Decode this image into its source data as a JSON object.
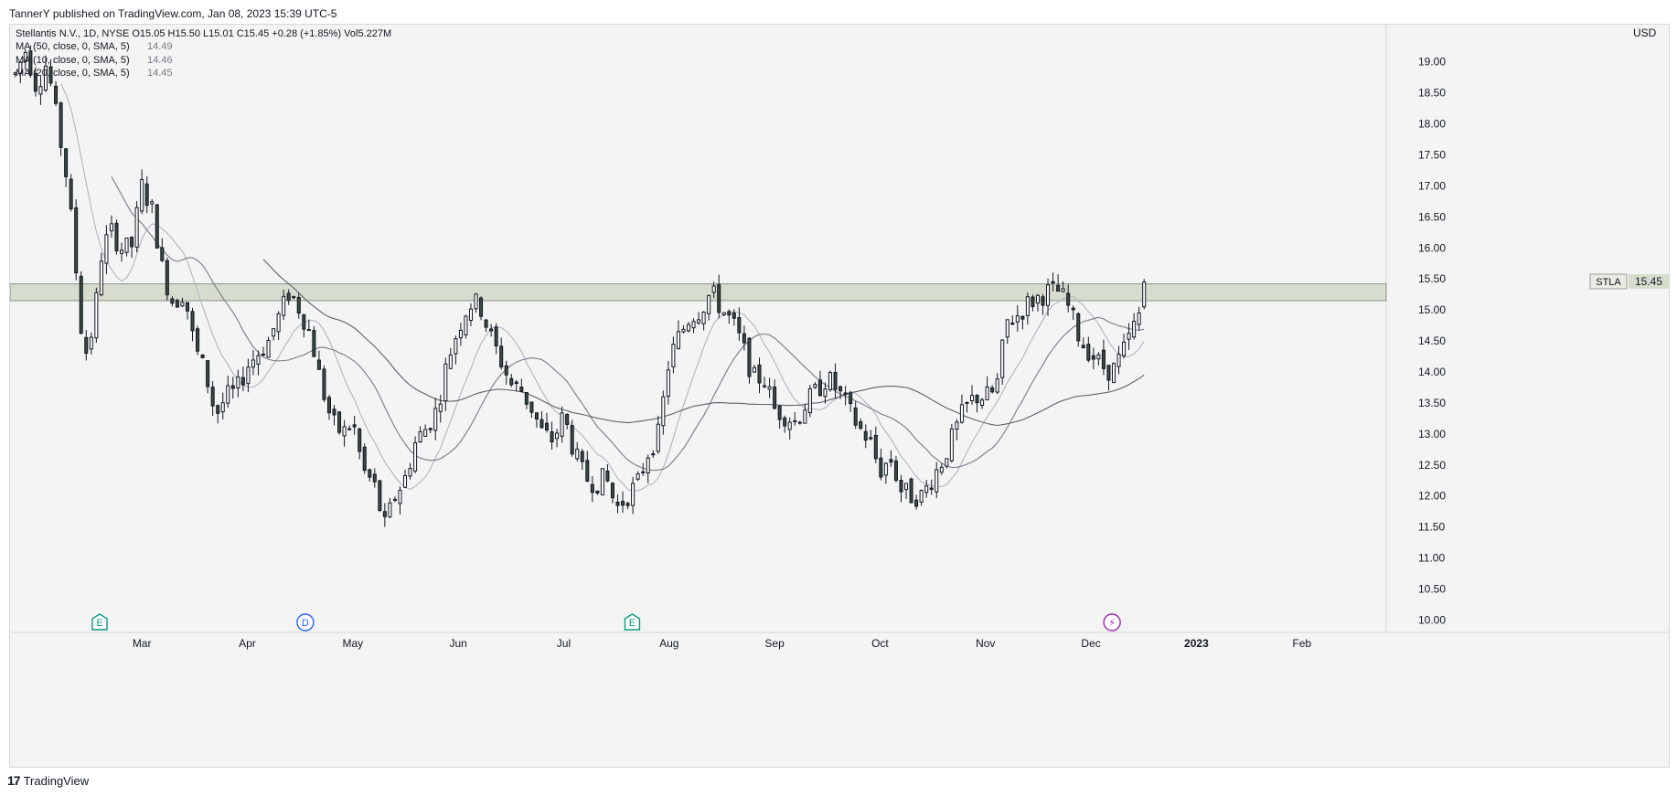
{
  "header": {
    "published_by": "TannerY published on TradingView.com, Jan 08, 2023 15:39 UTC-5"
  },
  "legend": {
    "symbol_line": "Stellantis N.V., 1D, NYSE  O15.05  H15.50  L15.01  C15.45  +0.28 (+1.85%)  Vol5.227M",
    "ma_lines": [
      {
        "label": "MA (50, close, 0, SMA, 5)",
        "value": "14.49"
      },
      {
        "label": "MA (10, close, 0, SMA, 5)",
        "value": "14.46"
      },
      {
        "label": "MA (20, close, 0, SMA, 5)",
        "value": "14.45"
      }
    ]
  },
  "footer": {
    "brand": "TradingView",
    "logo_glyph": "17"
  },
  "price_tag": {
    "symbol": "STLA",
    "price": "15.45"
  },
  "events": [
    {
      "glyph": "E",
      "month_pos": 1.6,
      "color": "#089981"
    },
    {
      "glyph": "D",
      "month_pos": 3.55,
      "color": "#2962ff"
    },
    {
      "glyph": "E",
      "month_pos": 6.65,
      "color": "#089981"
    },
    {
      "glyph": "⚡",
      "month_pos": 11.2,
      "color": "#9c27b0"
    }
  ],
  "colors": {
    "candle_up_fill": "#ffffff",
    "candle_down_fill": "#3b4a40",
    "candle_border": "#131722",
    "ma_fast": "#b2b5be",
    "ma_mid": "#787b86",
    "ma_slow": "#5d606b",
    "zone_fill": "#d7ddce",
    "zone_border": "#8a8f85"
  },
  "chart_data": {
    "type": "candlestick",
    "symbol": "Stellantis N.V.",
    "exchange": "NYSE",
    "interval": "1D",
    "currency": "USD",
    "y_range": [
      9.8,
      19.6
    ],
    "y_ticks": [
      "19.00",
      "18.50",
      "18.00",
      "17.50",
      "17.00",
      "16.50",
      "16.00",
      "15.50",
      "15.00",
      "14.50",
      "14.00",
      "13.50",
      "13.00",
      "12.50",
      "12.00",
      "11.50",
      "11.00",
      "10.50",
      "10.00"
    ],
    "x_range": [
      0.75,
      13.8
    ],
    "x_ticks": [
      {
        "label": "Mar",
        "pos": 2.0
      },
      {
        "label": "Apr",
        "pos": 3.0
      },
      {
        "label": "May",
        "pos": 4.0
      },
      {
        "label": "Jun",
        "pos": 5.0
      },
      {
        "label": "Jul",
        "pos": 6.0
      },
      {
        "label": "Aug",
        "pos": 7.0
      },
      {
        "label": "Sep",
        "pos": 8.0
      },
      {
        "label": "Oct",
        "pos": 9.0
      },
      {
        "label": "Nov",
        "pos": 10.0
      },
      {
        "label": "Dec",
        "pos": 11.0
      },
      {
        "label": "2023",
        "pos": 12.0
      },
      {
        "label": "Feb",
        "pos": 13.0
      }
    ],
    "resistance_zone": [
      15.15,
      15.42
    ],
    "price_anchors": [
      [
        0.8,
        18.8
      ],
      [
        0.9,
        19.2
      ],
      [
        1.0,
        18.6
      ],
      [
        1.1,
        19.0
      ],
      [
        1.2,
        18.0
      ],
      [
        1.3,
        17.0
      ],
      [
        1.4,
        15.2
      ],
      [
        1.45,
        14.2
      ],
      [
        1.55,
        14.8
      ],
      [
        1.6,
        15.8
      ],
      [
        1.7,
        16.3
      ],
      [
        1.8,
        16.0
      ],
      [
        1.9,
        16.0
      ],
      [
        2.0,
        17.0
      ],
      [
        2.1,
        16.6
      ],
      [
        2.2,
        15.6
      ],
      [
        2.3,
        15.1
      ],
      [
        2.4,
        15.3
      ],
      [
        2.5,
        14.4
      ],
      [
        2.6,
        14.0
      ],
      [
        2.7,
        13.3
      ],
      [
        2.8,
        13.6
      ],
      [
        2.9,
        13.7
      ],
      [
        3.0,
        14.1
      ],
      [
        3.1,
        14.3
      ],
      [
        3.2,
        14.5
      ],
      [
        3.3,
        14.9
      ],
      [
        3.4,
        15.3
      ],
      [
        3.5,
        15.0
      ],
      [
        3.6,
        14.6
      ],
      [
        3.7,
        13.8
      ],
      [
        3.8,
        13.2
      ],
      [
        3.9,
        13.0
      ],
      [
        4.0,
        13.2
      ],
      [
        4.1,
        12.4
      ],
      [
        4.2,
        12.2
      ],
      [
        4.3,
        11.5
      ],
      [
        4.4,
        12.0
      ],
      [
        4.5,
        12.3
      ],
      [
        4.6,
        12.9
      ],
      [
        4.7,
        13.1
      ],
      [
        4.8,
        13.4
      ],
      [
        4.9,
        14.2
      ],
      [
        5.0,
        14.7
      ],
      [
        5.1,
        15.1
      ],
      [
        5.2,
        15.1
      ],
      [
        5.3,
        14.6
      ],
      [
        5.4,
        14.2
      ],
      [
        5.5,
        13.8
      ],
      [
        5.6,
        13.7
      ],
      [
        5.7,
        13.4
      ],
      [
        5.8,
        13.0
      ],
      [
        5.9,
        12.9
      ],
      [
        6.0,
        13.3
      ],
      [
        6.1,
        12.7
      ],
      [
        6.2,
        12.3
      ],
      [
        6.3,
        12.2
      ],
      [
        6.4,
        12.3
      ],
      [
        6.5,
        11.8
      ],
      [
        6.6,
        12.0
      ],
      [
        6.7,
        12.2
      ],
      [
        6.8,
        12.7
      ],
      [
        6.9,
        13.0
      ],
      [
        7.0,
        14.2
      ],
      [
        7.1,
        14.6
      ],
      [
        7.2,
        14.9
      ],
      [
        7.3,
        15.0
      ],
      [
        7.4,
        15.3
      ],
      [
        7.5,
        15.0
      ],
      [
        7.6,
        14.8
      ],
      [
        7.7,
        14.4
      ],
      [
        7.8,
        13.9
      ],
      [
        7.9,
        13.9
      ],
      [
        8.0,
        13.4
      ],
      [
        8.1,
        13.3
      ],
      [
        8.2,
        13.2
      ],
      [
        8.3,
        13.5
      ],
      [
        8.4,
        13.7
      ],
      [
        8.5,
        13.9
      ],
      [
        8.6,
        13.7
      ],
      [
        8.7,
        13.4
      ],
      [
        8.8,
        13.1
      ],
      [
        8.9,
        12.9
      ],
      [
        9.0,
        12.4
      ],
      [
        9.1,
        12.6
      ],
      [
        9.2,
        12.1
      ],
      [
        9.3,
        12.0
      ],
      [
        9.4,
        12.0
      ],
      [
        9.5,
        12.3
      ],
      [
        9.6,
        12.6
      ],
      [
        9.7,
        13.0
      ],
      [
        9.8,
        13.4
      ],
      [
        9.9,
        13.6
      ],
      [
        10.0,
        13.6
      ],
      [
        10.1,
        13.7
      ],
      [
        10.2,
        14.8
      ],
      [
        10.3,
        14.9
      ],
      [
        10.4,
        15.1
      ],
      [
        10.5,
        15.2
      ],
      [
        10.6,
        15.3
      ],
      [
        10.7,
        15.3
      ],
      [
        10.8,
        15.0
      ],
      [
        10.9,
        14.5
      ],
      [
        11.0,
        14.3
      ],
      [
        11.1,
        14.1
      ],
      [
        11.2,
        14.0
      ],
      [
        11.3,
        14.3
      ],
      [
        11.4,
        14.7
      ],
      [
        11.5,
        15.1
      ],
      [
        11.55,
        15.45
      ]
    ],
    "ma_last": {
      "ma50": 14.49,
      "ma10": 14.46,
      "ma20": 14.45
    },
    "last": {
      "open": 15.05,
      "high": 15.5,
      "low": 15.01,
      "close": 15.45,
      "change": 0.28,
      "change_pct": 1.85,
      "volume": "5.227M"
    }
  }
}
